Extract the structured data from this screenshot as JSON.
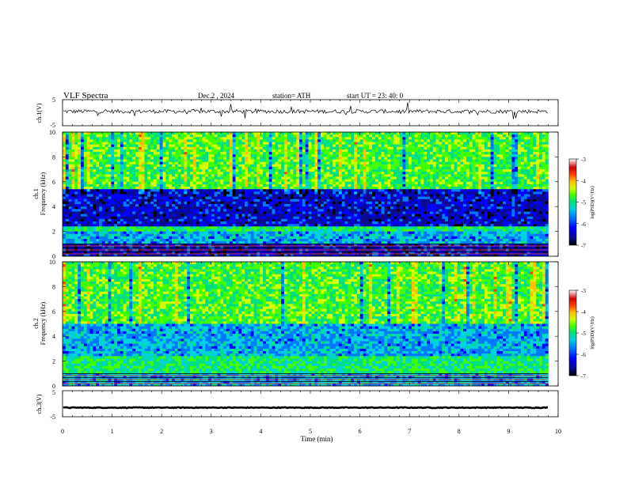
{
  "header": {
    "title": "VLF  Spectra",
    "date": "Dec.2  , 2024",
    "station": "station= ATH",
    "start": "start  UT  =   23: 40: 0"
  },
  "colors": {
    "colormap": [
      "#000000",
      "#0a0a8c",
      "#0000ff",
      "#0078ff",
      "#00d0e0",
      "#00e080",
      "#40ff00",
      "#d0ff00",
      "#ffc000",
      "#ff4000",
      "#d00000",
      "#ffffff"
    ]
  },
  "chart_data": [
    {
      "type": "line",
      "ylabel": "ch.1(V)",
      "ylim": [
        -5,
        5
      ],
      "yticks": [
        "5",
        "-5"
      ],
      "baseline": 0.5,
      "noise_amplitude": 1.5
    },
    {
      "type": "heatmap",
      "ylabel_channel": "ch.1",
      "ylabel": "Frequency  (kHz)",
      "ylim": [
        0,
        10
      ],
      "yticks": [
        "0",
        "2",
        "4",
        "6",
        "8",
        "10"
      ],
      "colorbar_label": "log(PSD)(V²/Hz)",
      "colorbar_range": [
        -7,
        -3
      ],
      "colorbar_ticks": [
        "-3",
        "-4",
        "-5",
        "-6",
        "-7"
      ],
      "bands": [
        {
          "f0": 0,
          "f1": 1.0,
          "level": "low"
        },
        {
          "f0": 1.0,
          "f1": 2.0,
          "level": "mid-low"
        },
        {
          "f0": 2.0,
          "f1": 2.5,
          "level": "mid"
        },
        {
          "f0": 2.5,
          "f1": 5.5,
          "level": "low"
        },
        {
          "f0": 5.5,
          "f1": 10,
          "level": "high"
        }
      ]
    },
    {
      "type": "heatmap",
      "ylabel_channel": "ch.2",
      "ylabel": "Frequency  (kHz)",
      "ylim": [
        0,
        10
      ],
      "yticks": [
        "0",
        "2",
        "4",
        "6",
        "8",
        "10"
      ],
      "colorbar_label": "log(PSD)(V²/Hz)",
      "colorbar_range": [
        -7,
        -3
      ],
      "colorbar_ticks": [
        "-3",
        "-4",
        "-5",
        "-6",
        "-7"
      ],
      "bands": [
        {
          "f0": 0,
          "f1": 1.0,
          "level": "mid-low"
        },
        {
          "f0": 1.0,
          "f1": 2.5,
          "level": "mid"
        },
        {
          "f0": 2.5,
          "f1": 5.0,
          "level": "mid-low"
        },
        {
          "f0": 5.0,
          "f1": 10,
          "level": "high"
        }
      ]
    },
    {
      "type": "line",
      "ylabel": "ch.3(V)",
      "ylim": [
        -5,
        5
      ],
      "yticks": [
        "5",
        "-5"
      ],
      "baseline": -1.5,
      "noise_amplitude": 0.3
    }
  ],
  "xaxis": {
    "label": "Time  (min)",
    "range": [
      0,
      10
    ],
    "data_end": 9.8,
    "ticks": [
      "0",
      "1",
      "2",
      "3",
      "4",
      "5",
      "6",
      "7",
      "8",
      "9",
      "10"
    ]
  }
}
